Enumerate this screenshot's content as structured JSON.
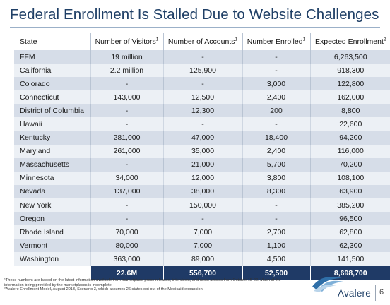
{
  "title": "Federal Enrollment Is Stalled Due to Website Challenges",
  "table": {
    "headers": [
      "State",
      "Number of Visitors",
      "Number of Accounts",
      "Number Enrolled",
      "Expected Enrollment"
    ],
    "header_sups": [
      "",
      "1",
      "1",
      "1",
      "2"
    ],
    "rows": [
      [
        "FFM",
        "19 million",
        "-",
        "-",
        "6,263,500"
      ],
      [
        "California",
        "2.2 million",
        "125,900",
        "-",
        "918,300"
      ],
      [
        "Colorado",
        "-",
        "-",
        "3,000",
        "122,800"
      ],
      [
        "Connecticut",
        "143,000",
        "12,500",
        "2,400",
        "162,000"
      ],
      [
        "District of Columbia",
        "-",
        "12,300",
        "200",
        "8,800"
      ],
      [
        "Hawaii",
        "-",
        "-",
        "-",
        "22,600"
      ],
      [
        "Kentucky",
        "281,000",
        "47,000",
        "18,400",
        "94,200"
      ],
      [
        "Maryland",
        "261,000",
        "35,000",
        "2,400",
        "116,000"
      ],
      [
        "Massachusetts",
        "-",
        "21,000",
        "5,700",
        "70,200"
      ],
      [
        "Minnesota",
        "34,000",
        "12,000",
        "3,800",
        "108,100"
      ],
      [
        "Nevada",
        "137,000",
        "38,000",
        "8,300",
        "63,900"
      ],
      [
        "New York",
        "-",
        "150,000",
        "-",
        "385,200"
      ],
      [
        "Oregon",
        "-",
        "-",
        "-",
        "96,500"
      ],
      [
        "Rhode Island",
        "70,000",
        "7,000",
        "2,700",
        "62,800"
      ],
      [
        "Vermont",
        "80,000",
        "7,000",
        "1,100",
        "62,300"
      ],
      [
        "Washington",
        "363,000",
        "89,000",
        "4,500",
        "141,500"
      ]
    ],
    "totals": [
      "",
      "22.6M",
      "556,700",
      "52,500",
      "8,698,700"
    ]
  },
  "footnotes": [
    "¹These numbers are based on the latest information available from marketplace press releases, interviews, and news articles from October 15-22. Much of the information being provided by the marketplaces is incomplete.",
    "²Avalere Enrollment Model, August 2013, Scenario 3, which assumes 26 states opt out of the Medicaid expansion."
  ],
  "logo": {
    "text": "Avalere",
    "icon": "avalere-wave-icon"
  },
  "page_number": "6",
  "colors": {
    "title": "#1f3f66",
    "row_dark": "#d6dde8",
    "row_light": "#ecf0f5",
    "total_bg": "#1f3a66"
  }
}
